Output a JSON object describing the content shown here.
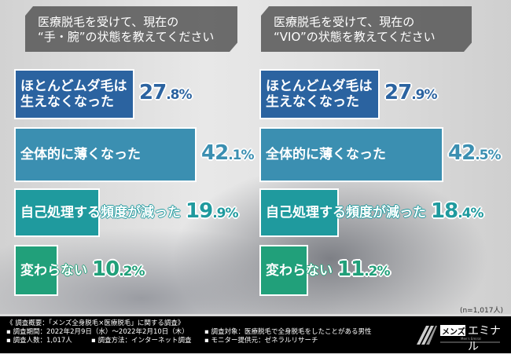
{
  "chart_data": [
    {
      "type": "bar",
      "orientation": "horizontal",
      "title": "医療脱毛を受けて、現在の“手・腕”の状態を教えてください",
      "categories": [
        "ほとんどムダ毛は生えなくなった",
        "全体的に薄くなった",
        "自己処理する頻度が減った",
        "変わらない"
      ],
      "values": [
        27.8,
        42.1,
        19.9,
        10.2
      ],
      "unit": "%",
      "colors": [
        "#2b63a0",
        "#3b8fb1",
        "#1f9a9e",
        "#21a07a"
      ]
    },
    {
      "type": "bar",
      "orientation": "horizontal",
      "title": "医療脱毛を受けて、現在の“VIO”の状態を教えてください",
      "categories": [
        "ほとんどムダ毛は生えなくなった",
        "全体的に薄くなった",
        "自己処理する頻度が減った",
        "変わらない"
      ],
      "values": [
        27.9,
        42.5,
        18.4,
        11.2
      ],
      "unit": "%",
      "colors": [
        "#2b63a0",
        "#3b8fb1",
        "#1f9a9e",
        "#21a07a"
      ]
    }
  ],
  "titles": [
    [
      "医療脱毛を受けて、現在の",
      "“手・腕”の状態を教えてください"
    ],
    [
      "医療脱毛を受けて、現在の",
      "“VIO”の状態を教えてください"
    ]
  ],
  "labels_wrapped": [
    "ほとんどムダ毛は\n生えなくなった",
    "全体的に薄くなった",
    "自己処理する頻度が減った",
    "変わらない"
  ],
  "sample_note": "(n=1,017人)",
  "footer": {
    "heading": "《 調査概要：「メンズ全身脱毛×医療脱毛」に関する調査》",
    "period": "▪ 調査期間：2022年2月9日（水）～2022年2月10日（木）",
    "count": "▪ 調査人数：1,017人",
    "method": "▪ 調査方法：インターネット調査",
    "target": "▪ 調査対象：医療脱毛で全身脱毛をしたことがある男性",
    "provider": "▪ モニター提供元：ゼネラルリサーチ"
  },
  "logo": {
    "text": "メンズ",
    "text2": "エミナル",
    "sub": "Men's Emiral"
  }
}
